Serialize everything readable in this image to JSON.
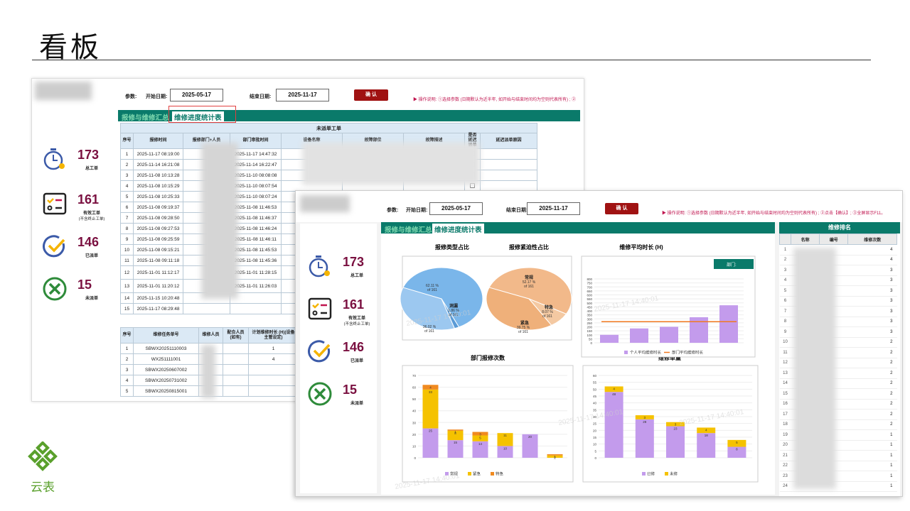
{
  "slide": {
    "title": "看板",
    "logo_text": "云表"
  },
  "shot1": {
    "params_label": "参数:",
    "start_label": "开始日期:",
    "start_value": "2025-05-17",
    "end_label": "结束日期:",
    "end_value": "2025-11-17",
    "ok_label": "确 认",
    "note": "▶ 操作说明: ①选择参数 (日期默认为近半年, 如开始与结束时间均为空则代表所有) ; ②",
    "tabs": [
      "报修与维修汇总",
      "维修进度统计表"
    ],
    "kpis": [
      {
        "value": "173",
        "label": "总工单",
        "sub": ""
      },
      {
        "value": "161",
        "label": "有效工单",
        "sub": "(不含终止工单)"
      },
      {
        "value": "146",
        "label": "已派单",
        "sub": ""
      },
      {
        "value": "15",
        "label": "未派单",
        "sub": ""
      }
    ],
    "table1_title": "未派单工单",
    "table1_headers": [
      "序号",
      "报修时间",
      "报修部门+人员",
      "部门审批时间",
      "设备名称",
      "故障部位",
      "故障描述",
      "是否延迟派单",
      "延迟派单原因"
    ],
    "table1_rows": [
      [
        "1",
        "2025-11-17 08:19:00",
        "2025-11-17 14:47:32"
      ],
      [
        "2",
        "2025-11-14 16:21:08",
        "2025-11-14 16:22:47"
      ],
      [
        "3",
        "2025-11-08 10:13:28",
        "2025-11-10 08:08:08"
      ],
      [
        "4",
        "2025-11-08 10:15:29",
        "2025-11-10 08:07:54"
      ],
      [
        "5",
        "2025-11-08 10:25:33",
        "2025-11-10 08:07:24"
      ],
      [
        "6",
        "2025-11-08 09:19:37",
        "2025-11-08 11:46:53"
      ],
      [
        "7",
        "2025-11-08 09:28:50",
        "2025-11-08 11:46:37"
      ],
      [
        "8",
        "2025-11-08 09:27:53",
        "2025-11-08 11:46:24"
      ],
      [
        "9",
        "2025-11-08 09:25:59",
        "2025-11-08 11:46:11"
      ],
      [
        "10",
        "2025-11-08 09:15:21",
        "2025-11-08 11:45:53"
      ],
      [
        "11",
        "2025-11-08 09:11:18",
        "2025-11-08 11:45:36"
      ],
      [
        "12",
        "2025-11-01 11:12:17",
        "2025-11-01 11:28:15"
      ],
      [
        "13",
        "2025-11-01 11:20:12",
        "2025-11-01 11:26:03"
      ],
      [
        "14",
        "2025-11-15 10:20:48",
        ""
      ],
      [
        "15",
        "2025-11-17 08:29:48",
        ""
      ]
    ],
    "table2_headers": [
      "序号",
      "维修任务单号",
      "维修人员",
      "配合人员(如有)",
      "计划维修时长 (H)(设备主管设定)"
    ],
    "table2_rows": [
      [
        "1",
        "SBWX20251110003",
        "1"
      ],
      [
        "2",
        "WX251111001",
        "4"
      ],
      [
        "3",
        "SBWX20250607002",
        ""
      ],
      [
        "4",
        "SBWX20250731002",
        ""
      ],
      [
        "5",
        "SBWX20250815001",
        ""
      ]
    ]
  },
  "shot2": {
    "params_label": "参数:",
    "start_label": "开始日期:",
    "start_value": "2025-05-17",
    "end_label": "结束日期:",
    "end_value": "2025-11-17",
    "ok_label": "确 认",
    "note": "▶ 操作说明: ①选择参数 (日期默认为近半年, 如开始与结束时间均为空则代表所有) ; ②点击【确认】; ③全屏显示F11。",
    "tabs": [
      "报修与维修汇总",
      "维修进度统计表"
    ],
    "kpis": [
      {
        "value": "173",
        "label": "总工单",
        "sub": ""
      },
      {
        "value": "161",
        "label": "有效工单",
        "sub": "(不含终止工单)"
      },
      {
        "value": "146",
        "label": "已派单",
        "sub": ""
      },
      {
        "value": "15",
        "label": "未派单",
        "sub": ""
      }
    ],
    "dept_label": "部门:",
    "rank_title": "维修排名",
    "rank_headers": [
      "名称",
      "编号",
      "维修次数"
    ],
    "rank_counts": [
      "4",
      "4",
      "3",
      "3",
      "3",
      "3",
      "3",
      "3",
      "3",
      "2",
      "2",
      "2",
      "2",
      "2",
      "2",
      "2",
      "2",
      "2",
      "1",
      "1",
      "1",
      "1",
      "1",
      "1"
    ]
  },
  "watermarks": [
    "2025-11-17 14:40:01",
    "maiguanting麦冠庭",
    "麦冠庭"
  ],
  "chart_data": [
    {
      "type": "pie",
      "title": "报修类型占比",
      "categories": [
        "",
        "洞漏",
        ""
      ],
      "values": [
        62.11,
        1.86,
        36.02
      ],
      "labels": [
        "62.11 %\nof 161",
        "1.86 %\nof 161",
        "36.02 %\nof 161"
      ]
    },
    {
      "type": "pie",
      "title": "报修紧迫性占比",
      "categories": [
        "常规",
        "特急",
        "紧急"
      ],
      "values": [
        52.17,
        8.07,
        39.75
      ],
      "labels": [
        "52.17 %\nof 161",
        "8.07 %\nof 161",
        "39.75 %\nof 161"
      ]
    },
    {
      "type": "bar",
      "title": "维修平均时长 (H)",
      "categories": [
        "",
        "",
        "",
        "",
        ""
      ],
      "series": [
        {
          "name": "个人平均维修时长",
          "values": [
            100,
            180,
            200,
            320,
            470
          ]
        },
        {
          "name": "部门平均维修时长",
          "values": [
            265,
            265,
            265,
            265,
            265
          ]
        }
      ],
      "ylim": [
        0,
        800
      ],
      "yticks": [
        0,
        50,
        100,
        150,
        200,
        250,
        300,
        350,
        400,
        450,
        500,
        550,
        600,
        650,
        700,
        750,
        800
      ]
    },
    {
      "type": "bar",
      "title": "部门报修次数",
      "categories": [
        "",
        "",
        "",
        "",
        "",
        ""
      ],
      "series": [
        {
          "name": "常规",
          "values": [
            25,
            15,
            14,
            10,
            20,
            0
          ]
        },
        {
          "name": "紧急",
          "values": [
            33,
            8,
            5,
            11,
            0,
            2
          ]
        },
        {
          "name": "特急",
          "values": [
            4,
            1,
            3,
            0,
            0,
            1
          ]
        }
      ],
      "ylim": [
        0,
        70
      ],
      "yticks": [
        0,
        10,
        20,
        30,
        40,
        50,
        60,
        70
      ]
    },
    {
      "type": "bar",
      "title": "维修单量",
      "categories": [
        "",
        "",
        "",
        "",
        ""
      ],
      "series": [
        {
          "name": "已修",
          "values": [
            48,
            28,
            23,
            18,
            8
          ]
        },
        {
          "name": "未修",
          "values": [
            4,
            3,
            3,
            4,
            5
          ]
        }
      ],
      "ylim": [
        0,
        60
      ],
      "yticks": [
        0,
        5,
        10,
        15,
        20,
        25,
        30,
        35,
        40,
        45,
        50,
        55,
        60
      ]
    }
  ]
}
